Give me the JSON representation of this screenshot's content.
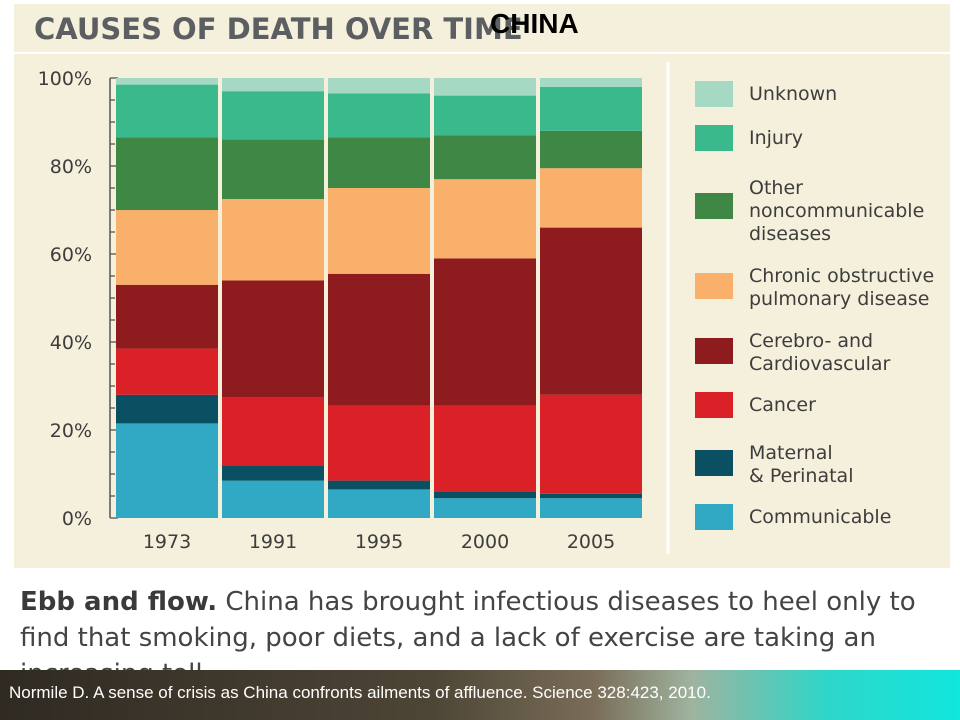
{
  "title": {
    "main": "CAUSES OF DEATH OVER TIME",
    "overlay": "CHINA"
  },
  "chart_data": {
    "type": "bar",
    "stacked": true,
    "categories": [
      "1973",
      "1991",
      "1995",
      "2000",
      "2005"
    ],
    "ylim": [
      0,
      100
    ],
    "yticks": [
      "0%",
      "20%",
      "40%",
      "60%",
      "80%",
      "100%"
    ],
    "series": [
      {
        "name": "Communicable",
        "color": "#31a9c4",
        "values": [
          21.5,
          8.5,
          6.5,
          4.5,
          4.5
        ]
      },
      {
        "name": "Maternal\n& Perinatal",
        "color": "#0b4f62",
        "values": [
          6.5,
          3.5,
          2,
          1.5,
          1
        ]
      },
      {
        "name": "Cancer",
        "color": "#da2128",
        "values": [
          10.5,
          15.5,
          17,
          19.5,
          22.5
        ]
      },
      {
        "name": "Cerebro- and\nCardiovascular",
        "color": "#8e1c1f",
        "values": [
          14.5,
          26.5,
          30,
          33.5,
          38
        ]
      },
      {
        "name": "Chronic obstructive\npulmonary disease",
        "color": "#f8b06a",
        "values": [
          17,
          18.5,
          19.5,
          18,
          13.5
        ]
      },
      {
        "name": "Other\nnoncommunicable\ndiseases",
        "color": "#3e8744",
        "values": [
          16.5,
          13.5,
          11.5,
          10,
          8.5
        ]
      },
      {
        "name": "Injury",
        "color": "#3ab98c",
        "values": [
          12,
          11,
          10,
          9,
          10
        ]
      },
      {
        "name": "Unknown",
        "color": "#a6d9c4",
        "values": [
          1.5,
          3,
          3.5,
          4,
          2
        ]
      }
    ]
  },
  "caption": {
    "lead": "Ebb and flow.",
    "text": " China has brought infectious diseases to heel only to find that smoking, poor diets, and a lack of exercise are taking an increasing toll."
  },
  "footer": {
    "citation": "Normile D. A sense of crisis as China confronts ailments of affluence. Science 328:423, 2010."
  }
}
